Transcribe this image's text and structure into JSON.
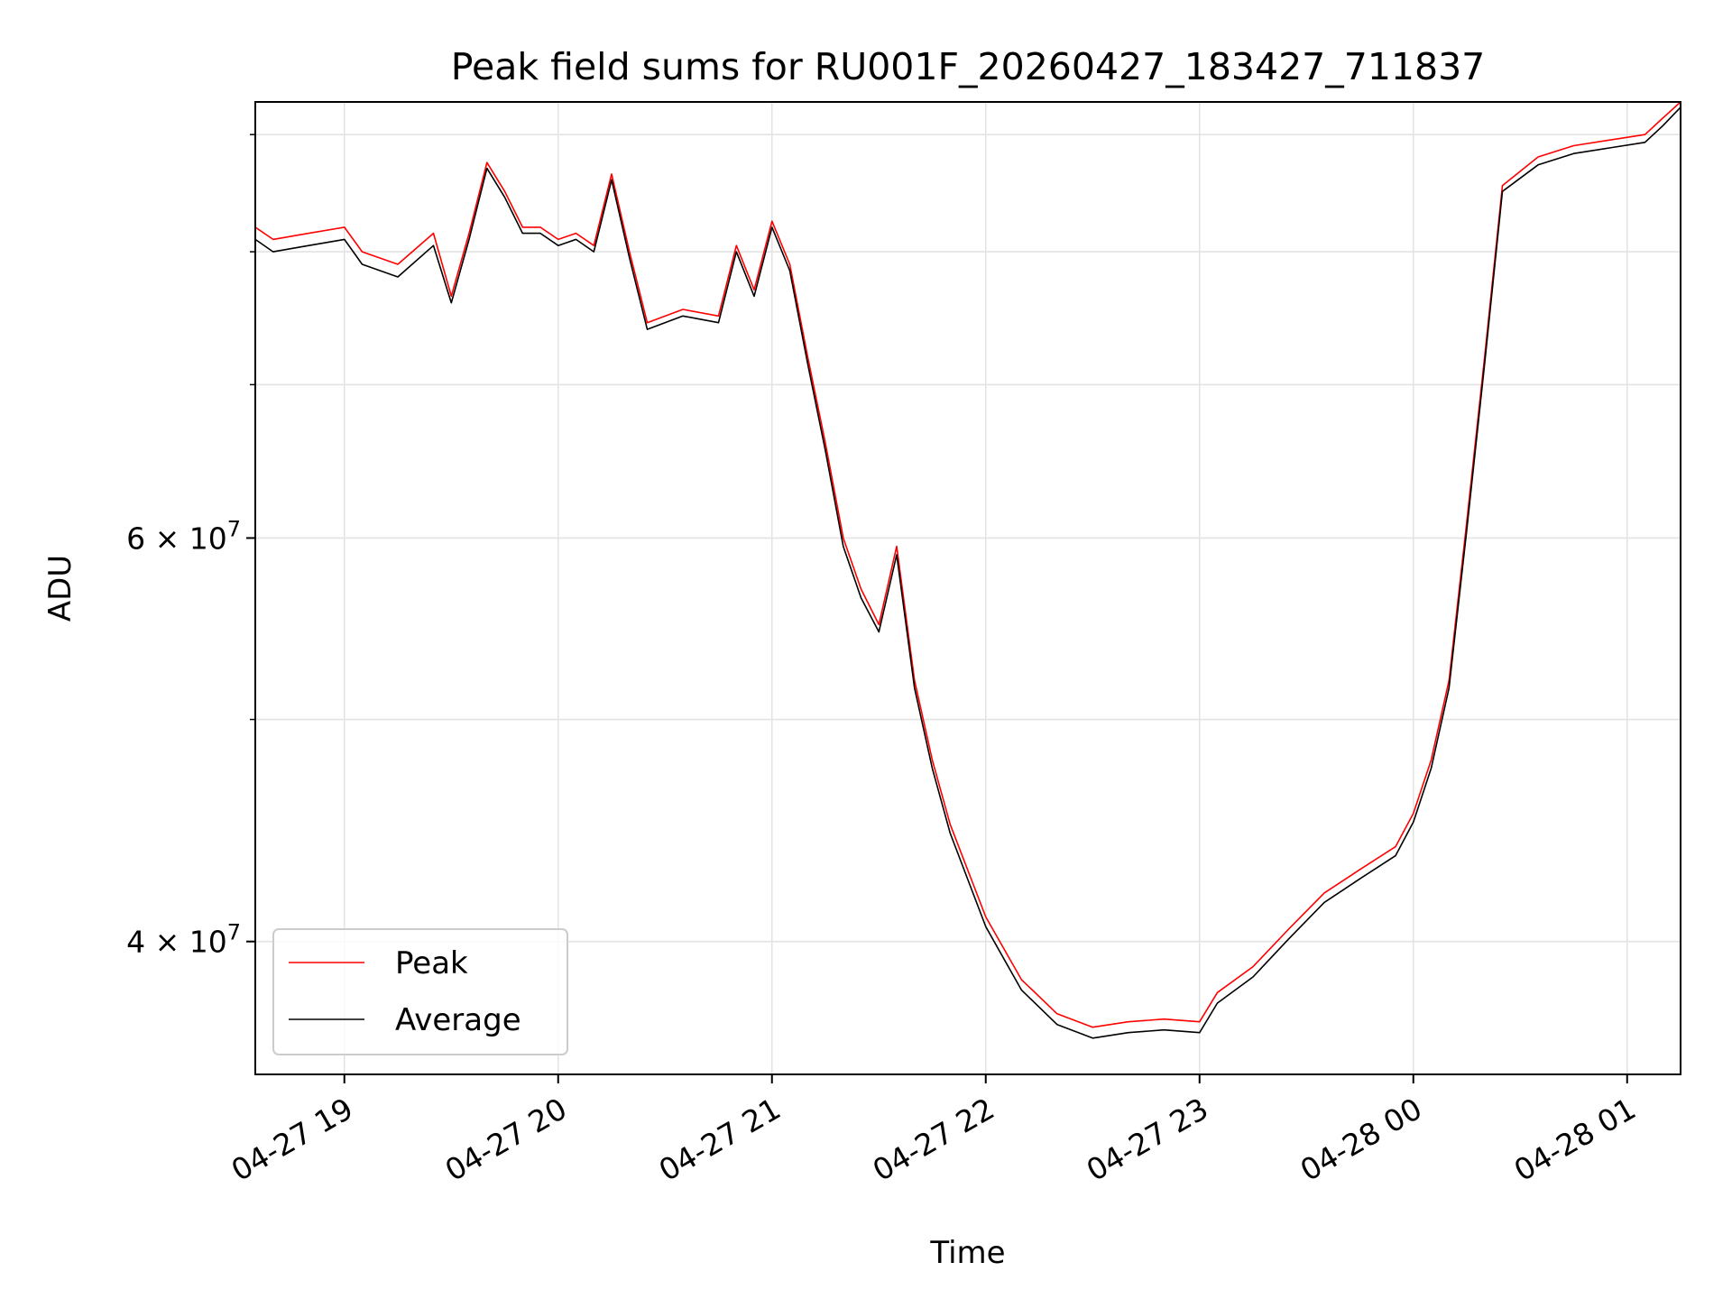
{
  "chart_data": {
    "type": "line",
    "title": "Peak field sums for RU001F_20260427_183427_711837",
    "xlabel": "Time",
    "ylabel": "ADU",
    "x_range": [
      "2026-04-27 18:35",
      "2026-04-28 01:15"
    ],
    "x_ticks": [
      {
        "t": "2026-04-27 19:00",
        "label": "04-27 19"
      },
      {
        "t": "2026-04-27 20:00",
        "label": "04-27 20"
      },
      {
        "t": "2026-04-27 21:00",
        "label": "04-27 21"
      },
      {
        "t": "2026-04-27 22:00",
        "label": "04-27 22"
      },
      {
        "t": "2026-04-27 23:00",
        "label": "04-27 23"
      },
      {
        "t": "2026-04-28 00:00",
        "label": "04-28 00"
      },
      {
        "t": "2026-04-28 01:00",
        "label": "04-28 01"
      }
    ],
    "y_scale": "log",
    "ylim": [
      35000000,
      93000000
    ],
    "y_ticks_labeled": [
      {
        "value": 40000000,
        "mantissa": "4",
        "exponent": "7"
      },
      {
        "value": 60000000,
        "mantissa": "6",
        "exponent": "7"
      }
    ],
    "y_ticks_minor": [
      50000000,
      70000000,
      80000000,
      90000000
    ],
    "grid": true,
    "legend_position": "lower-left",
    "series": [
      {
        "name": "Peak",
        "color": "#ff0000",
        "points": [
          [
            "2026-04-27 18:35",
            82000000
          ],
          [
            "2026-04-27 18:40",
            81000000
          ],
          [
            "2026-04-27 18:50",
            81500000
          ],
          [
            "2026-04-27 19:00",
            82000000
          ],
          [
            "2026-04-27 19:05",
            80000000
          ],
          [
            "2026-04-27 19:15",
            79000000
          ],
          [
            "2026-04-27 19:25",
            81500000
          ],
          [
            "2026-04-27 19:30",
            76500000
          ],
          [
            "2026-04-27 19:35",
            81500000
          ],
          [
            "2026-04-27 19:40",
            87500000
          ],
          [
            "2026-04-27 19:45",
            85000000
          ],
          [
            "2026-04-27 19:50",
            82000000
          ],
          [
            "2026-04-27 19:55",
            82000000
          ],
          [
            "2026-04-27 20:00",
            81000000
          ],
          [
            "2026-04-27 20:05",
            81500000
          ],
          [
            "2026-04-27 20:10",
            80500000
          ],
          [
            "2026-04-27 20:15",
            86500000
          ],
          [
            "2026-04-27 20:20",
            80000000
          ],
          [
            "2026-04-27 20:25",
            74500000
          ],
          [
            "2026-04-27 20:35",
            75500000
          ],
          [
            "2026-04-27 20:45",
            75000000
          ],
          [
            "2026-04-27 20:50",
            80500000
          ],
          [
            "2026-04-27 20:55",
            77000000
          ],
          [
            "2026-04-27 21:00",
            82500000
          ],
          [
            "2026-04-27 21:05",
            79000000
          ],
          [
            "2026-04-27 21:10",
            72000000
          ],
          [
            "2026-04-27 21:15",
            66000000
          ],
          [
            "2026-04-27 21:20",
            60000000
          ],
          [
            "2026-04-27 21:25",
            57000000
          ],
          [
            "2026-04-27 21:30",
            55000000
          ],
          [
            "2026-04-27 21:35",
            59500000
          ],
          [
            "2026-04-27 21:40",
            52000000
          ],
          [
            "2026-04-27 21:45",
            48000000
          ],
          [
            "2026-04-27 21:50",
            45000000
          ],
          [
            "2026-04-27 22:00",
            41000000
          ],
          [
            "2026-04-27 22:10",
            38500000
          ],
          [
            "2026-04-27 22:20",
            37200000
          ],
          [
            "2026-04-27 22:30",
            36700000
          ],
          [
            "2026-04-27 22:40",
            36900000
          ],
          [
            "2026-04-27 22:50",
            37000000
          ],
          [
            "2026-04-27 23:00",
            36900000
          ],
          [
            "2026-04-27 23:05",
            38000000
          ],
          [
            "2026-04-27 23:15",
            39000000
          ],
          [
            "2026-04-27 23:25",
            40500000
          ],
          [
            "2026-04-27 23:35",
            42000000
          ],
          [
            "2026-04-27 23:45",
            43000000
          ],
          [
            "2026-04-27 23:55",
            44000000
          ],
          [
            "2026-04-28 00:00",
            45500000
          ],
          [
            "2026-04-28 00:05",
            48000000
          ],
          [
            "2026-04-28 00:10",
            52000000
          ],
          [
            "2026-04-28 00:15",
            61000000
          ],
          [
            "2026-04-28 00:20",
            72000000
          ],
          [
            "2026-04-28 00:25",
            85500000
          ],
          [
            "2026-04-28 00:35",
            88000000
          ],
          [
            "2026-04-28 00:45",
            89000000
          ],
          [
            "2026-04-28 00:55",
            89500000
          ],
          [
            "2026-04-28 01:05",
            90000000
          ],
          [
            "2026-04-28 01:10",
            91500000
          ],
          [
            "2026-04-28 01:15",
            93000000
          ]
        ]
      },
      {
        "name": "Average",
        "color": "#000000",
        "points": [
          [
            "2026-04-27 18:35",
            81000000
          ],
          [
            "2026-04-27 18:40",
            80000000
          ],
          [
            "2026-04-27 18:50",
            80500000
          ],
          [
            "2026-04-27 19:00",
            81000000
          ],
          [
            "2026-04-27 19:05",
            79000000
          ],
          [
            "2026-04-27 19:15",
            78000000
          ],
          [
            "2026-04-27 19:25",
            80500000
          ],
          [
            "2026-04-27 19:30",
            76000000
          ],
          [
            "2026-04-27 19:35",
            81000000
          ],
          [
            "2026-04-27 19:40",
            87000000
          ],
          [
            "2026-04-27 19:45",
            84500000
          ],
          [
            "2026-04-27 19:50",
            81500000
          ],
          [
            "2026-04-27 19:55",
            81500000
          ],
          [
            "2026-04-27 20:00",
            80500000
          ],
          [
            "2026-04-27 20:05",
            81000000
          ],
          [
            "2026-04-27 20:10",
            80000000
          ],
          [
            "2026-04-27 20:15",
            86000000
          ],
          [
            "2026-04-27 20:20",
            79500000
          ],
          [
            "2026-04-27 20:25",
            74000000
          ],
          [
            "2026-04-27 20:35",
            75000000
          ],
          [
            "2026-04-27 20:45",
            74500000
          ],
          [
            "2026-04-27 20:50",
            80000000
          ],
          [
            "2026-04-27 20:55",
            76500000
          ],
          [
            "2026-04-27 21:00",
            82000000
          ],
          [
            "2026-04-27 21:05",
            78500000
          ],
          [
            "2026-04-27 21:10",
            71500000
          ],
          [
            "2026-04-27 21:15",
            65500000
          ],
          [
            "2026-04-27 21:20",
            59500000
          ],
          [
            "2026-04-27 21:25",
            56500000
          ],
          [
            "2026-04-27 21:30",
            54600000
          ],
          [
            "2026-04-27 21:35",
            59000000
          ],
          [
            "2026-04-27 21:40",
            51600000
          ],
          [
            "2026-04-27 21:45",
            47600000
          ],
          [
            "2026-04-27 21:50",
            44600000
          ],
          [
            "2026-04-27 22:00",
            40600000
          ],
          [
            "2026-04-27 22:10",
            38100000
          ],
          [
            "2026-04-27 22:20",
            36800000
          ],
          [
            "2026-04-27 22:30",
            36300000
          ],
          [
            "2026-04-27 22:40",
            36500000
          ],
          [
            "2026-04-27 22:50",
            36600000
          ],
          [
            "2026-04-27 23:00",
            36500000
          ],
          [
            "2026-04-27 23:05",
            37600000
          ],
          [
            "2026-04-27 23:15",
            38600000
          ],
          [
            "2026-04-27 23:25",
            40100000
          ],
          [
            "2026-04-27 23:35",
            41600000
          ],
          [
            "2026-04-27 23:45",
            42600000
          ],
          [
            "2026-04-27 23:55",
            43600000
          ],
          [
            "2026-04-28 00:00",
            45100000
          ],
          [
            "2026-04-28 00:05",
            47600000
          ],
          [
            "2026-04-28 00:10",
            51600000
          ],
          [
            "2026-04-28 00:15",
            60500000
          ],
          [
            "2026-04-28 00:20",
            71500000
          ],
          [
            "2026-04-28 00:25",
            85000000
          ],
          [
            "2026-04-28 00:35",
            87300000
          ],
          [
            "2026-04-28 00:45",
            88300000
          ],
          [
            "2026-04-28 00:55",
            88800000
          ],
          [
            "2026-04-28 01:05",
            89300000
          ],
          [
            "2026-04-28 01:10",
            90800000
          ],
          [
            "2026-04-28 01:15",
            92500000
          ]
        ]
      }
    ]
  }
}
